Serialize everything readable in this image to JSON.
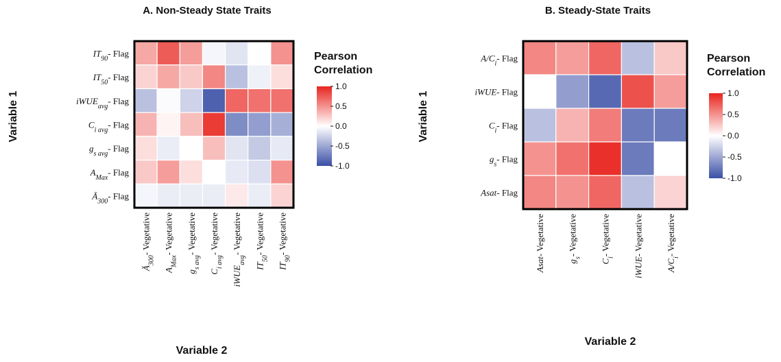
{
  "chart_data": [
    {
      "type": "heatmap",
      "title": "A. Non-Steady State Traits",
      "xlabel": "Variable 2",
      "ylabel": "Variable 1",
      "rows": [
        {
          "var": "IT",
          "sub": "90",
          "suffix": "- Flag"
        },
        {
          "var": "IT",
          "sub": "50",
          "suffix": "- Flag"
        },
        {
          "var": "iWUE",
          "sub": "avg",
          "suffix": "- Flag"
        },
        {
          "var": "C",
          "sub": "i avg",
          "suffix": "- Flag"
        },
        {
          "var": "g",
          "sub": "s avg",
          "suffix": "- Flag"
        },
        {
          "var": "A",
          "sub": "Max",
          "suffix": "- Flag"
        },
        {
          "var": "Ā",
          "sub": "300",
          "suffix": "- Flag"
        }
      ],
      "columns": [
        {
          "var": "Ā",
          "sub": "300",
          "suffix": "- Vegetative"
        },
        {
          "var": "A",
          "sub": "Max",
          "suffix": "- Vegetative"
        },
        {
          "var": "g",
          "sub": "s avg",
          "suffix": "- Vegetative"
        },
        {
          "var": "C",
          "sub": "i avg",
          "suffix": "- Vegetative"
        },
        {
          "var": "iWUE",
          "sub": "avg",
          "suffix": "- Vegetative"
        },
        {
          "var": "IT",
          "sub": "50",
          "suffix": "- Vegetative"
        },
        {
          "var": "IT",
          "sub": "90",
          "suffix": "- Vegetative"
        }
      ],
      "values": [
        [
          0.4,
          0.75,
          0.45,
          -0.05,
          -0.15,
          0.0,
          0.5
        ],
        [
          0.2,
          0.4,
          0.25,
          0.55,
          -0.35,
          -0.08,
          0.15
        ],
        [
          -0.35,
          -0.02,
          -0.25,
          -0.9,
          0.7,
          0.65,
          0.65
        ],
        [
          0.35,
          0.05,
          0.3,
          0.9,
          -0.65,
          -0.55,
          -0.45
        ],
        [
          0.15,
          -0.1,
          0.0,
          0.3,
          -0.15,
          -0.3,
          -0.12
        ],
        [
          0.25,
          0.45,
          0.15,
          0.0,
          -0.12,
          -0.18,
          0.5
        ],
        [
          -0.05,
          -0.1,
          -0.1,
          -0.1,
          0.1,
          -0.1,
          0.2
        ]
      ],
      "legend": {
        "title": [
          "Pearson",
          "Correlation"
        ],
        "ticks": [
          1.0,
          0.5,
          0.0,
          -0.5,
          -1.0
        ],
        "tick_labels": [
          "1.0",
          "0.5",
          "0.0",
          "-0.5",
          "-1.0"
        ]
      },
      "color_range": [
        -1,
        1
      ]
    },
    {
      "type": "heatmap",
      "title": "B. Steady-State Traits",
      "xlabel": "Variable 2",
      "ylabel": "Variable 1",
      "rows": [
        {
          "var": "A/C",
          "sub": "i",
          "suffix": "- Flag"
        },
        {
          "var": "iWUE",
          "sub": "",
          "suffix": "- Flag"
        },
        {
          "var": "C",
          "sub": "i",
          "suffix": "- Flag"
        },
        {
          "var": "g",
          "sub": "s",
          "suffix": "- Flag"
        },
        {
          "var": "Asat",
          "sub": "",
          "suffix": "- Flag"
        }
      ],
      "columns": [
        {
          "var": "Asat",
          "sub": "",
          "suffix": "- Vegetative"
        },
        {
          "var": "g",
          "sub": "s",
          "suffix": "- Vegetative"
        },
        {
          "var": "C",
          "sub": "i",
          "suffix": "- Vegetative"
        },
        {
          "var": "iWUE",
          "sub": "",
          "suffix": "- Vegetative"
        },
        {
          "var": "A/C",
          "sub": "i",
          "suffix": "- Vegetative"
        }
      ],
      "values": [
        [
          0.55,
          0.45,
          0.7,
          -0.35,
          0.25
        ],
        [
          0.0,
          -0.55,
          -0.85,
          0.8,
          0.45
        ],
        [
          -0.35,
          0.35,
          0.6,
          -0.75,
          -0.75
        ],
        [
          0.5,
          0.65,
          0.95,
          -0.75,
          0.0
        ],
        [
          0.55,
          0.5,
          0.7,
          -0.35,
          0.2
        ]
      ],
      "legend": {
        "title": [
          "Pearson",
          "Correlation"
        ],
        "ticks": [
          1.0,
          0.5,
          0.0,
          -0.5,
          -1.0
        ],
        "tick_labels": [
          "1.0",
          "0.5",
          "0.0",
          "-0.5",
          "-1.0"
        ]
      },
      "color_range": [
        -1,
        1
      ]
    }
  ],
  "colors": {
    "positive": "#e8251f",
    "neutral": "#ffffff",
    "negative": "#3a4fa6",
    "border": "#000000",
    "grid": "#ffffff"
  }
}
